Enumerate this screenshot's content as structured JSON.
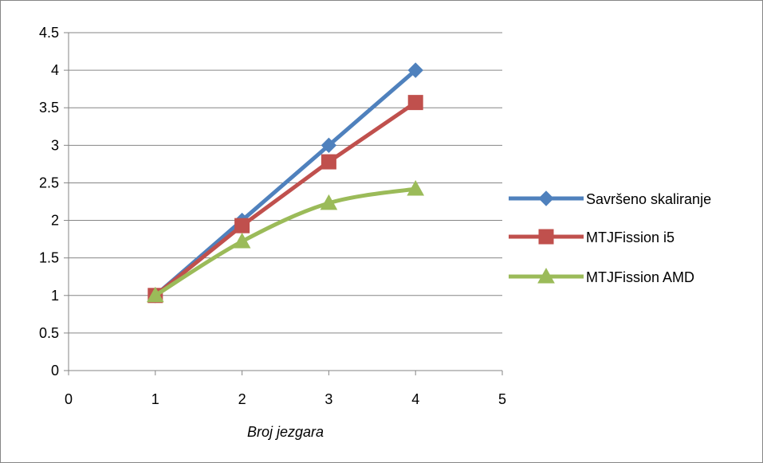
{
  "chart_data": {
    "type": "scatter",
    "title": "",
    "xlabel": "Broj jezgara",
    "ylabel": "",
    "xlim": [
      0,
      5
    ],
    "ylim": [
      0,
      4.5
    ],
    "x_ticks": [
      "0",
      "1",
      "2",
      "3",
      "4",
      "5"
    ],
    "y_ticks": [
      "0",
      "0.5",
      "1",
      "1.5",
      "2",
      "2.5",
      "3",
      "3.5",
      "4",
      "4.5"
    ],
    "grid": true,
    "legend_position": "right",
    "series": [
      {
        "name": "Savršeno skaliranje",
        "x": [
          1,
          2,
          3,
          4
        ],
        "y": [
          1,
          2,
          3,
          4
        ],
        "color": "#4F81BD",
        "marker": "diamond",
        "smooth": false
      },
      {
        "name": "MTJFission i5",
        "x": [
          1,
          2,
          3,
          4
        ],
        "y": [
          1,
          1.93,
          2.78,
          3.57
        ],
        "color": "#C0504D",
        "marker": "square",
        "smooth": false
      },
      {
        "name": "MTJFission AMD",
        "x": [
          1,
          2,
          3,
          4
        ],
        "y": [
          1,
          1.72,
          2.23,
          2.42
        ],
        "color": "#9BBB59",
        "marker": "triangle",
        "smooth": true
      }
    ]
  }
}
